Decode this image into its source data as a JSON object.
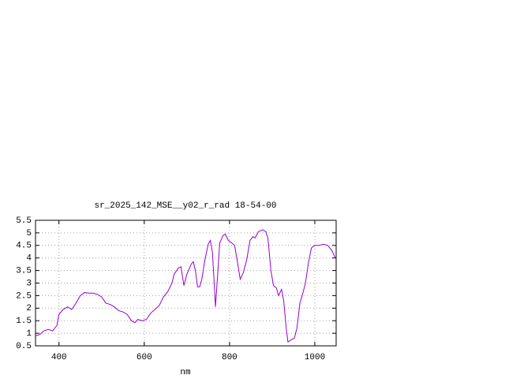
{
  "chart_data": {
    "type": "line",
    "title": "sr_2025_142_MSE__y02_r_rad 18-54-00",
    "x_label": "nm",
    "x": [
      345,
      355,
      365,
      375,
      385,
      395,
      400,
      410,
      420,
      430,
      440,
      450,
      460,
      470,
      480,
      490,
      500,
      510,
      520,
      530,
      540,
      550,
      560,
      570,
      578,
      585,
      595,
      605,
      615,
      625,
      635,
      645,
      655,
      665,
      670,
      680,
      686,
      693,
      700,
      710,
      715,
      720,
      725,
      730,
      735,
      742,
      750,
      755,
      760,
      764,
      767,
      772,
      777,
      785,
      790,
      797,
      805,
      812,
      818,
      825,
      832,
      840,
      848,
      855,
      860,
      868,
      878,
      885,
      890,
      897,
      903,
      910,
      915,
      922,
      927,
      933,
      937,
      945,
      952,
      958,
      965,
      972,
      978,
      985,
      992,
      1000,
      1010,
      1020,
      1030,
      1040,
      1048
    ],
    "series": [
      {
        "color": "#9400d3",
        "values": [
          0.9,
          0.95,
          1.1,
          1.15,
          1.1,
          1.3,
          1.75,
          1.95,
          2.05,
          1.95,
          2.2,
          2.5,
          2.62,
          2.6,
          2.6,
          2.55,
          2.45,
          2.2,
          2.15,
          2.05,
          1.9,
          1.85,
          1.75,
          1.5,
          1.42,
          1.55,
          1.5,
          1.55,
          1.8,
          1.95,
          2.1,
          2.45,
          2.65,
          3.0,
          3.35,
          3.6,
          3.65,
          2.9,
          3.35,
          3.75,
          3.85,
          3.5,
          2.85,
          2.85,
          3.15,
          3.9,
          4.55,
          4.7,
          4.2,
          3.0,
          2.05,
          3.3,
          4.6,
          4.9,
          4.95,
          4.7,
          4.6,
          4.5,
          3.9,
          3.15,
          3.4,
          3.9,
          4.7,
          4.85,
          4.8,
          5.05,
          5.12,
          5.05,
          4.8,
          3.5,
          2.9,
          2.8,
          2.5,
          2.75,
          2.3,
          1.2,
          0.65,
          0.75,
          0.8,
          1.2,
          2.2,
          2.6,
          3.0,
          3.8,
          4.4,
          4.5,
          4.5,
          4.55,
          4.5,
          4.3,
          4.0
        ]
      }
    ],
    "xlim": [
      345,
      1050
    ],
    "xticks": [
      400,
      600,
      800,
      1000
    ],
    "ylim": [
      0.5,
      5.5
    ],
    "yticks": [
      0.5,
      1,
      1.5,
      2,
      2.5,
      3,
      3.5,
      4,
      4.5,
      5,
      5.5
    ],
    "grid": true
  }
}
